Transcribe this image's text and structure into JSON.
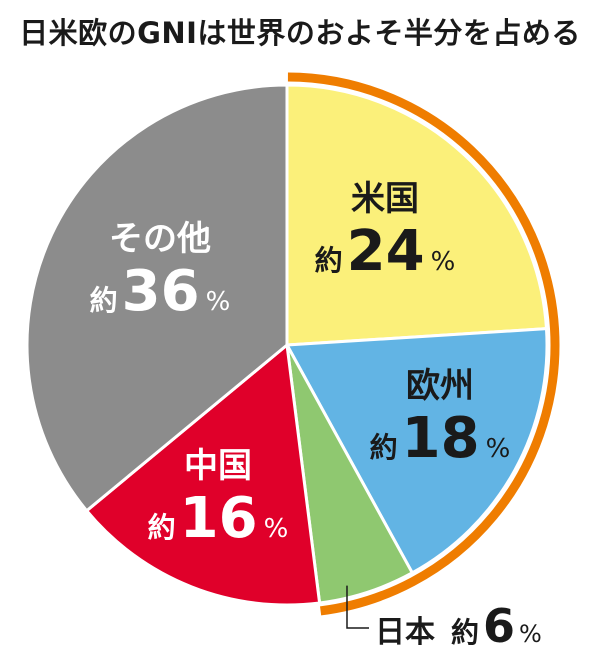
{
  "chart_data": {
    "type": "pie",
    "title": "日米欧のGNIは世界のおよそ半分を占める",
    "slices": [
      {
        "label": "米国",
        "prefix": "約",
        "value": 24,
        "unit": "%",
        "color": "#fbf07a",
        "text_color": "#1a1a1a"
      },
      {
        "label": "欧州",
        "prefix": "約",
        "value": 18,
        "unit": "%",
        "color": "#62b4e4",
        "text_color": "#1a1a1a"
      },
      {
        "label": "日本",
        "prefix": "約",
        "value": 6,
        "unit": "%",
        "color": "#8fc870",
        "text_color": "#1a1a1a"
      },
      {
        "label": "中国",
        "prefix": "約",
        "value": 16,
        "unit": "%",
        "color": "#e0002a",
        "text_color": "#ffffff"
      },
      {
        "label": "その他",
        "prefix": "約",
        "value": 36,
        "unit": "%",
        "color": "#8c8c8c",
        "text_color": "#ffffff"
      }
    ],
    "highlight_color": "#ef7d00"
  }
}
